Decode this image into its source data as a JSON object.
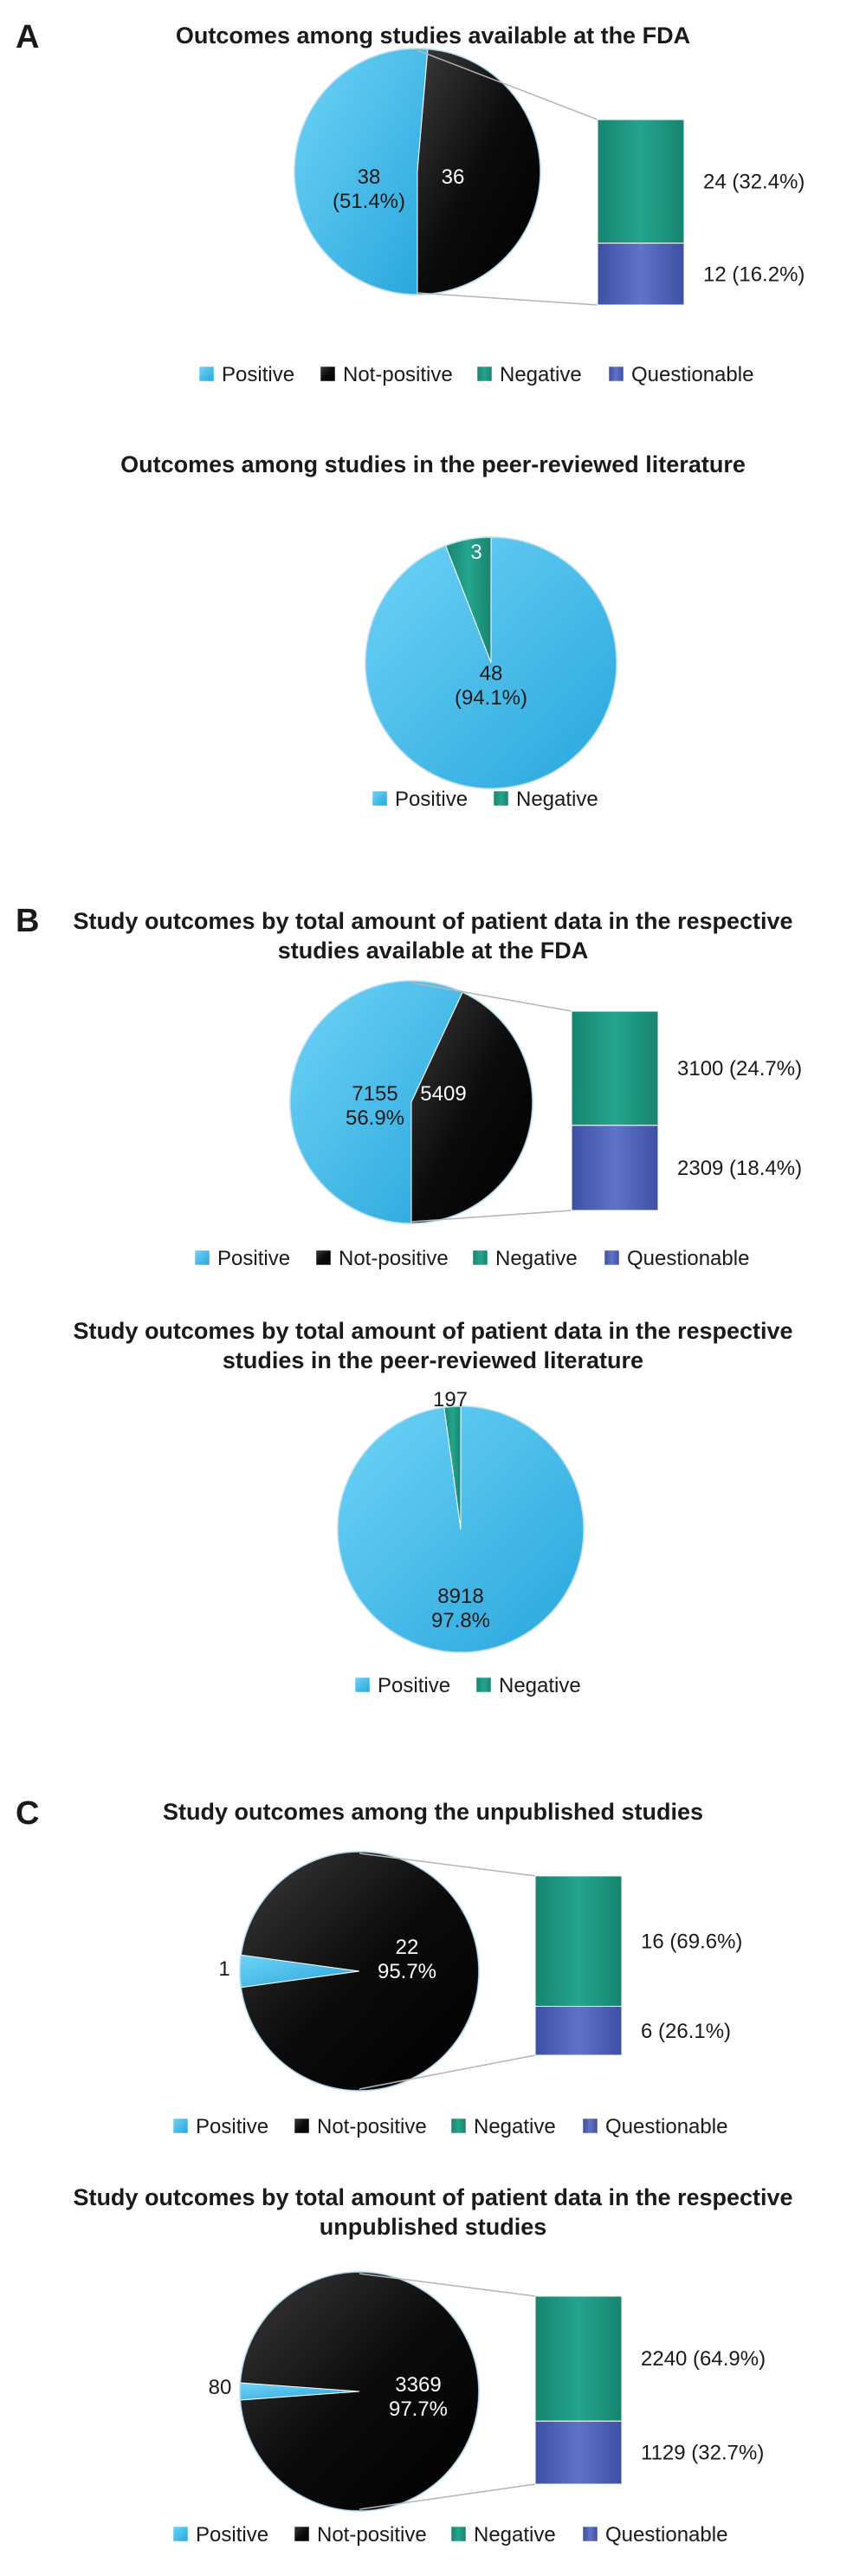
{
  "chart_data": [
    {
      "panel": "A",
      "type": "pie",
      "title": "Outcomes among studies available at the FDA",
      "slices": [
        {
          "category": "Positive",
          "value": 38,
          "label": "38\n(51.4%)"
        },
        {
          "category": "Not-positive",
          "value": 36,
          "label": "36"
        }
      ],
      "breakdown": [
        {
          "category": "Negative",
          "value": 24,
          "label": "24 (32.4%)"
        },
        {
          "category": "Questionable",
          "value": 12,
          "label": "12 (16.2%)"
        }
      ],
      "legend": [
        "Positive",
        "Not-positive",
        "Negative",
        "Questionable"
      ]
    },
    {
      "type": "pie",
      "title": "Outcomes among studies in the peer-reviewed literature",
      "slices": [
        {
          "category": "Positive",
          "value": 48,
          "label": "48\n(94.1%)"
        },
        {
          "category": "Negative",
          "value": 3,
          "label": "3"
        }
      ],
      "legend": [
        "Positive",
        "Negative"
      ]
    },
    {
      "panel": "B",
      "type": "pie",
      "title": "Study outcomes by total amount of patient data in the respective\nstudies available at the FDA",
      "slices": [
        {
          "category": "Positive",
          "value": 7155,
          "label": "7155\n56.9%"
        },
        {
          "category": "Not-positive",
          "value": 5409,
          "label": "5409"
        }
      ],
      "breakdown": [
        {
          "category": "Negative",
          "value": 3100,
          "label": "3100 (24.7%)"
        },
        {
          "category": "Questionable",
          "value": 2309,
          "label": "2309 (18.4%)"
        }
      ],
      "legend": [
        "Positive",
        "Not-positive",
        "Negative",
        "Questionable"
      ]
    },
    {
      "type": "pie",
      "title": "Study outcomes by total amount of patient data in the respective\nstudies in the peer-reviewed literature",
      "slices": [
        {
          "category": "Positive",
          "value": 8918,
          "label": "8918\n97.8%"
        },
        {
          "category": "Negative",
          "value": 197,
          "label": "197"
        }
      ],
      "legend": [
        "Positive",
        "Negative"
      ]
    },
    {
      "panel": "C",
      "type": "pie",
      "title": "Study outcomes among the unpublished studies",
      "slices": [
        {
          "category": "Positive",
          "value": 1,
          "label": "1"
        },
        {
          "category": "Not-positive",
          "value": 22,
          "label": "22\n95.7%"
        }
      ],
      "breakdown": [
        {
          "category": "Negative",
          "value": 16,
          "label": "16 (69.6%)"
        },
        {
          "category": "Questionable",
          "value": 6,
          "label": "6 (26.1%)"
        }
      ],
      "legend": [
        "Positive",
        "Not-positive",
        "Negative",
        "Questionable"
      ]
    },
    {
      "type": "pie",
      "title": "Study outcomes by total amount of patient data in the respective\nunpublished studies",
      "slices": [
        {
          "category": "Positive",
          "value": 80,
          "label": "80"
        },
        {
          "category": "Not-positive",
          "value": 3369,
          "label": "3369\n97.7%"
        }
      ],
      "breakdown": [
        {
          "category": "Negative",
          "value": 2240,
          "label": "2240 (64.9%)"
        },
        {
          "category": "Questionable",
          "value": 1129,
          "label": "1129 (32.7%)"
        }
      ],
      "legend": [
        "Positive",
        "Not-positive",
        "Negative",
        "Questionable"
      ]
    }
  ],
  "colors": {
    "Positive": "#3bb8ea",
    "Not-positive": "#0d0d0d",
    "Negative": "#1f9a82",
    "Questionable": "#4f63b8"
  }
}
